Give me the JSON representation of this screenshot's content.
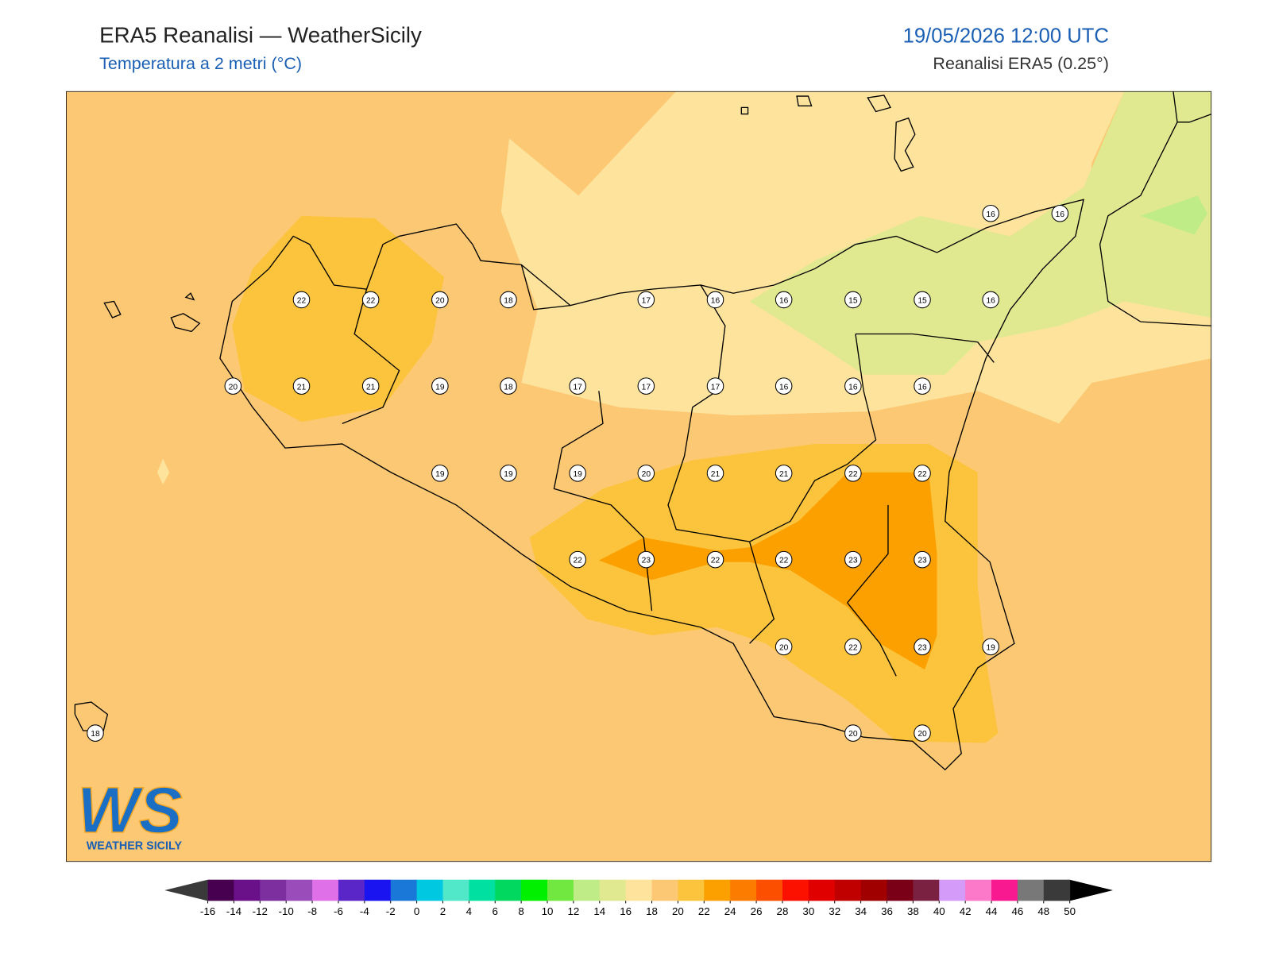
{
  "header": {
    "title": "ERA5 Reanalisi — WeatherSicily",
    "subtitle": "Temperatura a 2 metri (°C)",
    "datetime": "19/05/2026 12:00 UTC",
    "source": "Reanalisi ERA5 (0.25°)"
  },
  "map": {
    "temperature_grid": [
      [
        null,
        null,
        null,
        null,
        null,
        null,
        null,
        null,
        null,
        null,
        null,
        null,
        16,
        16
      ],
      [
        null,
        null,
        22,
        22,
        20,
        18,
        null,
        17,
        16,
        16,
        15,
        15,
        16,
        null
      ],
      [
        null,
        20,
        21,
        21,
        19,
        18,
        17,
        17,
        17,
        16,
        16,
        16,
        null,
        null
      ],
      [
        null,
        null,
        null,
        null,
        19,
        19,
        19,
        20,
        21,
        21,
        22,
        22,
        null,
        null
      ],
      [
        null,
        null,
        null,
        null,
        null,
        null,
        22,
        23,
        22,
        22,
        23,
        23,
        null,
        null
      ],
      [
        null,
        null,
        null,
        null,
        null,
        null,
        null,
        null,
        null,
        20,
        22,
        23,
        19,
        null
      ],
      [
        18,
        null,
        null,
        null,
        null,
        null,
        null,
        null,
        null,
        null,
        20,
        20,
        null,
        null
      ]
    ]
  },
  "logo": {
    "mark": "WS",
    "text": "WEATHER SICILY"
  },
  "colorbar": {
    "ticks": [
      -16,
      -14,
      -12,
      -10,
      -8,
      -6,
      -4,
      -2,
      0,
      2,
      4,
      6,
      8,
      10,
      12,
      14,
      16,
      18,
      20,
      22,
      24,
      26,
      28,
      30,
      32,
      34,
      36,
      38,
      40,
      42,
      44,
      46,
      48,
      50
    ],
    "colors": [
      "#47004f",
      "#6a118a",
      "#7d2fa0",
      "#9a4dba",
      "#e070e8",
      "#5b26c8",
      "#1a14f0",
      "#1a78d8",
      "#00c8e0",
      "#50e8c8",
      "#00e0a0",
      "#00d860",
      "#00f000",
      "#70e840",
      "#c0ec88",
      "#e0e890",
      "#fde39c",
      "#fcc874",
      "#fcc43c",
      "#fca000",
      "#fc7c00",
      "#fc5000",
      "#fc1000",
      "#e00000",
      "#c00000",
      "#a00000",
      "#7a0018",
      "#7a2040",
      "#d49cf8",
      "#fc78c8",
      "#f81890",
      "#787878",
      "#3a3a3a"
    ],
    "under_color": "#3a3a3a",
    "over_color": "#000000"
  }
}
